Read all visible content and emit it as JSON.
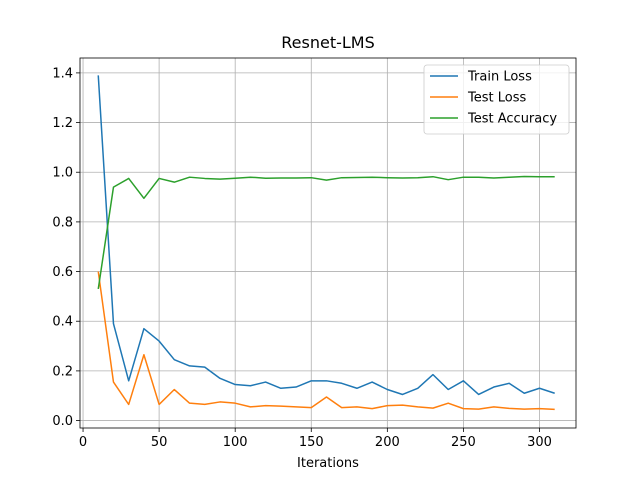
{
  "chart_data": {
    "type": "line",
    "title": "Resnet-LMS",
    "xlabel": "Iterations",
    "ylabel": "",
    "xlim": [
      -2,
      324
    ],
    "ylim": [
      -0.03,
      1.46
    ],
    "xticks": [
      0,
      50,
      100,
      150,
      200,
      250,
      300
    ],
    "xtick_labels": [
      "0",
      "50",
      "100",
      "150",
      "200",
      "250",
      "300"
    ],
    "yticks": [
      0.0,
      0.2,
      0.4,
      0.6,
      0.8,
      1.0,
      1.2,
      1.4
    ],
    "ytick_labels": [
      "0.0",
      "0.2",
      "0.4",
      "0.6",
      "0.8",
      "1.0",
      "1.2",
      "1.4"
    ],
    "grid": true,
    "legend_position": "top-right",
    "x": [
      10,
      20,
      30,
      40,
      50,
      60,
      70,
      80,
      90,
      100,
      110,
      120,
      130,
      140,
      150,
      160,
      170,
      180,
      190,
      200,
      210,
      220,
      230,
      240,
      250,
      260,
      270,
      280,
      290,
      300,
      310
    ],
    "series": [
      {
        "name": "Train Loss",
        "color": "#1f77b4",
        "values": [
          1.39,
          0.39,
          0.16,
          0.37,
          0.32,
          0.245,
          0.22,
          0.215,
          0.17,
          0.145,
          0.14,
          0.155,
          0.13,
          0.135,
          0.16,
          0.16,
          0.15,
          0.13,
          0.155,
          0.125,
          0.105,
          0.13,
          0.185,
          0.125,
          0.16,
          0.105,
          0.135,
          0.15,
          0.11,
          0.13,
          0.11
        ]
      },
      {
        "name": "Test Loss",
        "color": "#ff7f0e",
        "values": [
          0.6,
          0.155,
          0.065,
          0.265,
          0.065,
          0.125,
          0.07,
          0.065,
          0.075,
          0.07,
          0.055,
          0.06,
          0.058,
          0.055,
          0.052,
          0.095,
          0.052,
          0.055,
          0.048,
          0.06,
          0.062,
          0.055,
          0.05,
          0.07,
          0.048,
          0.046,
          0.055,
          0.049,
          0.046,
          0.048,
          0.045
        ]
      },
      {
        "name": "Test Accuracy",
        "color": "#2ca02c",
        "values": [
          0.53,
          0.94,
          0.975,
          0.895,
          0.975,
          0.96,
          0.98,
          0.975,
          0.972,
          0.976,
          0.98,
          0.976,
          0.977,
          0.977,
          0.978,
          0.968,
          0.978,
          0.979,
          0.98,
          0.978,
          0.977,
          0.978,
          0.982,
          0.97,
          0.98,
          0.98,
          0.977,
          0.98,
          0.983,
          0.982,
          0.982
        ]
      }
    ]
  }
}
